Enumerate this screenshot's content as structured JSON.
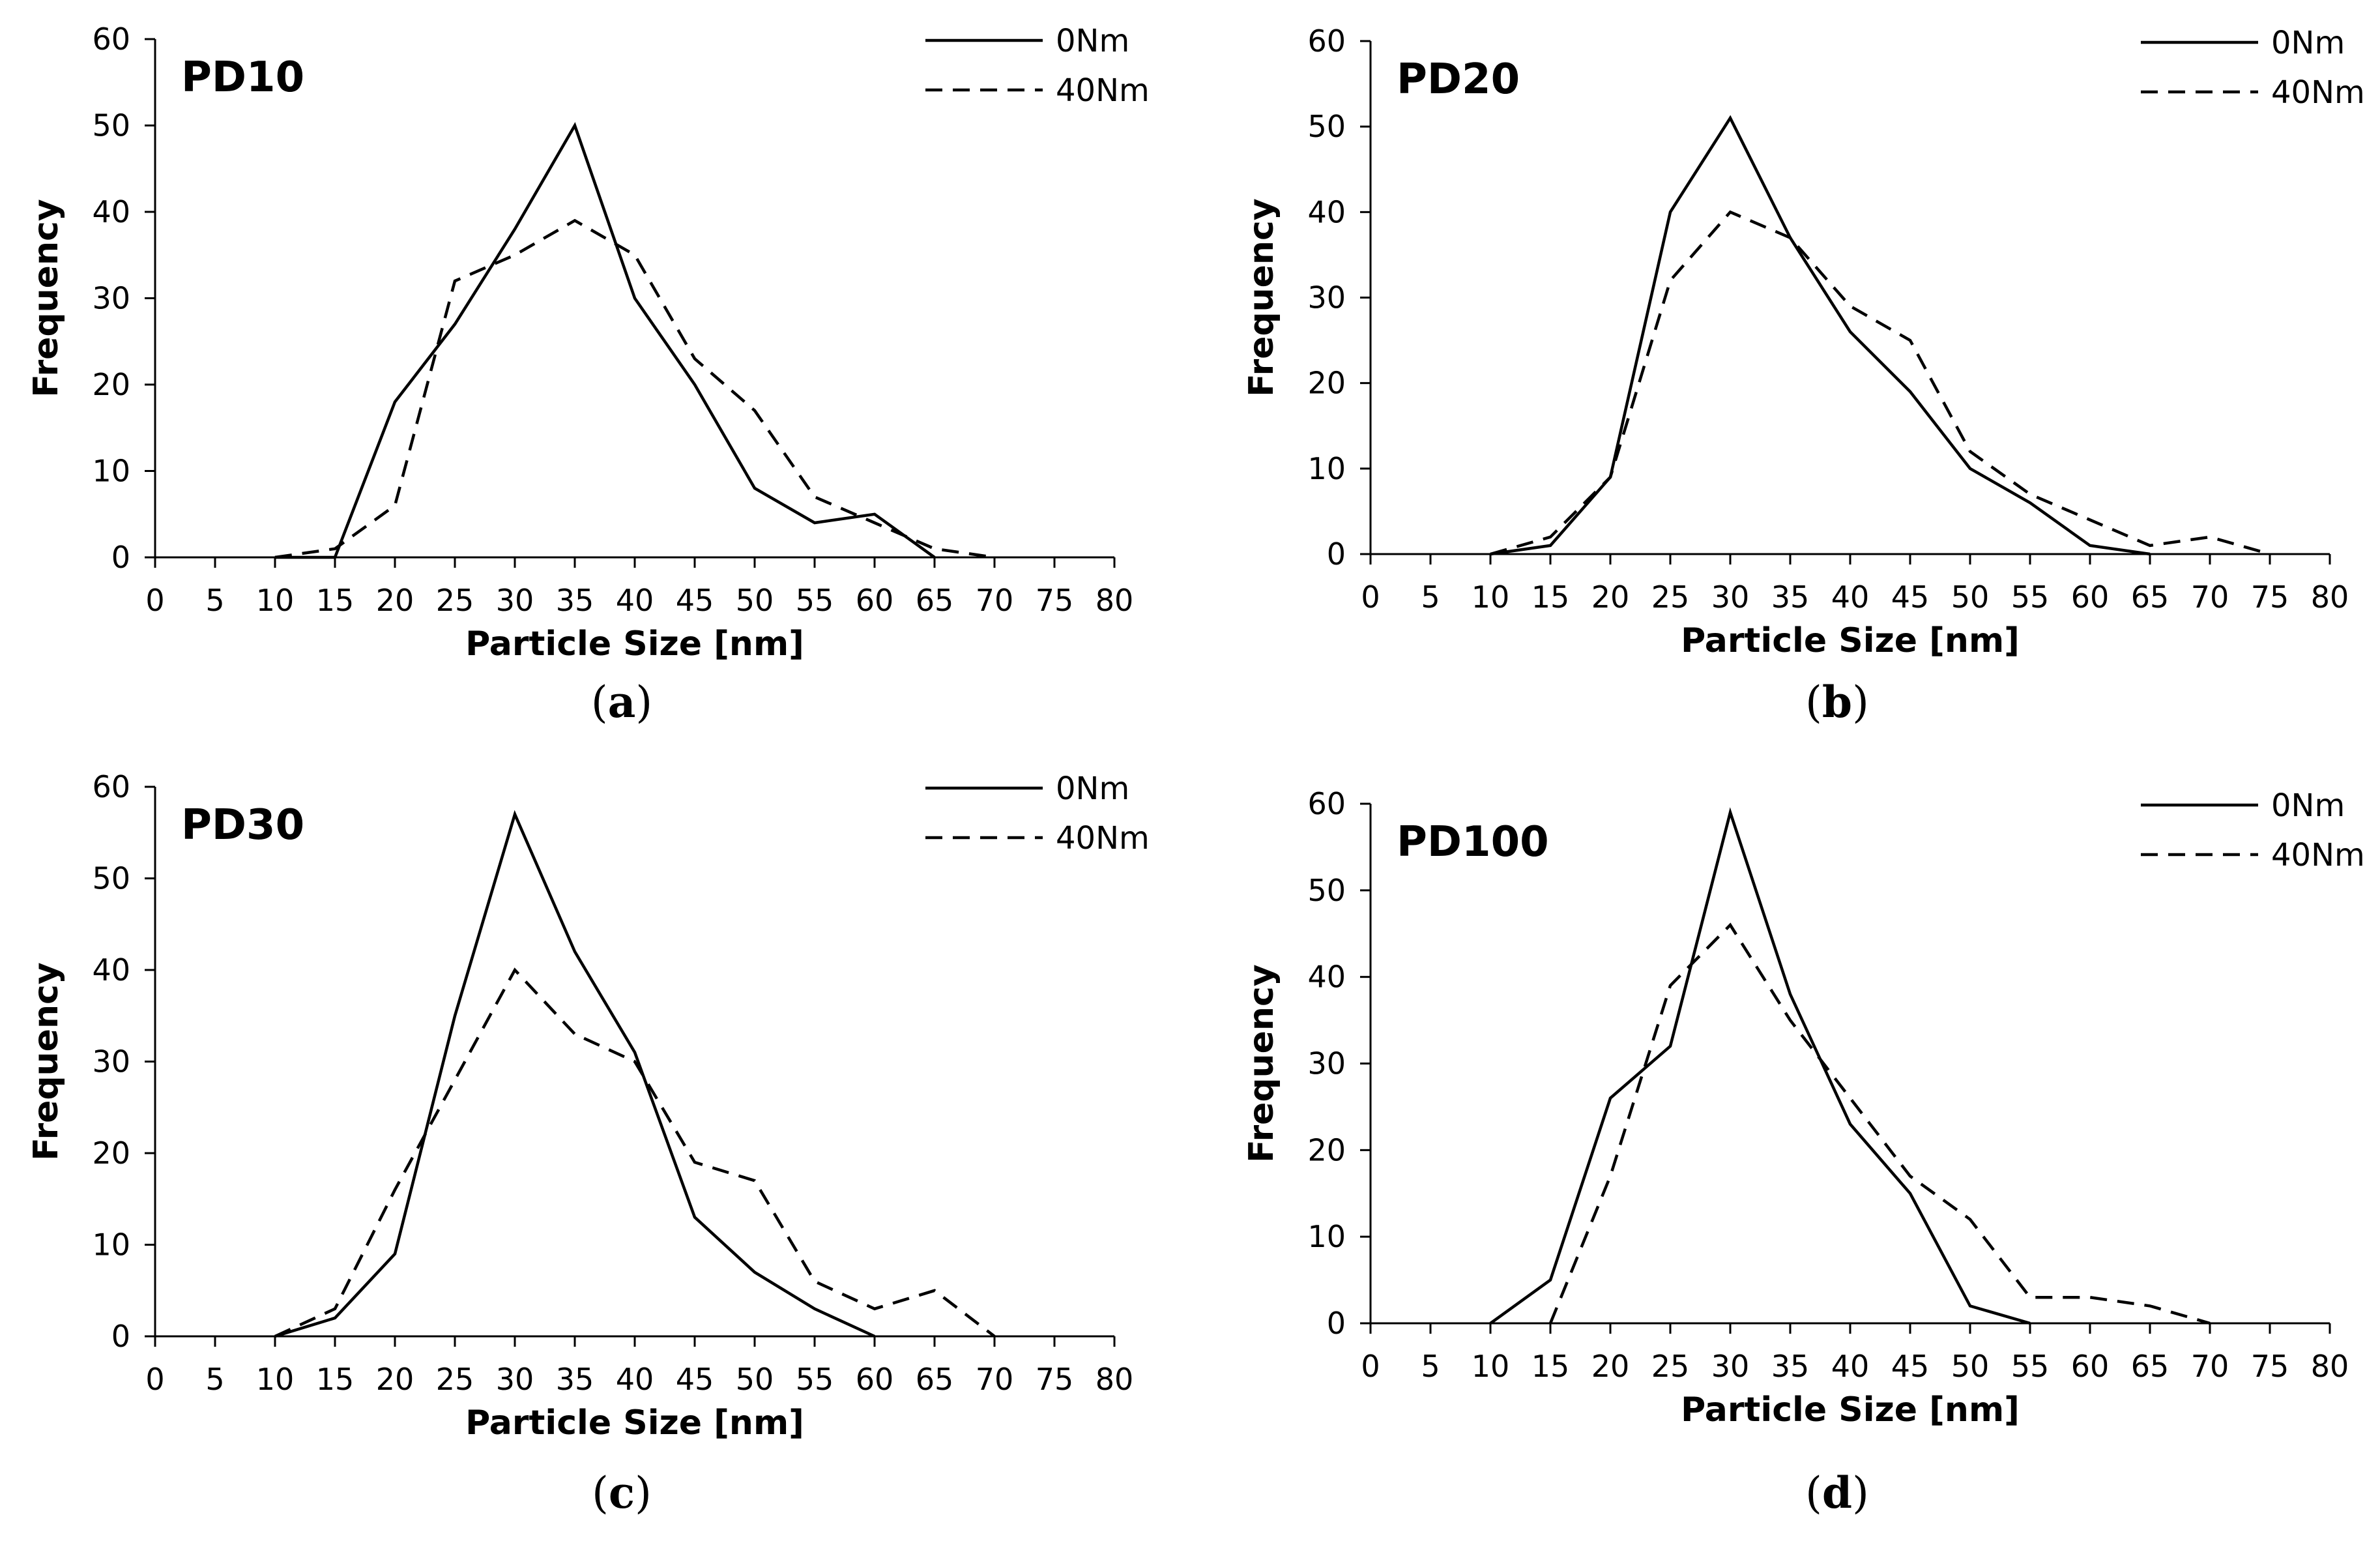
{
  "chart_data": [
    {
      "type": "line",
      "title": "PD10",
      "caption_letter": "a",
      "xlabel": "Particle Size [nm]",
      "ylabel": "Frequency",
      "xlim": [
        0,
        80
      ],
      "ylim": [
        0,
        60
      ],
      "xticks": [
        0,
        5,
        10,
        15,
        20,
        25,
        30,
        35,
        40,
        45,
        50,
        55,
        60,
        65,
        70,
        75,
        80
      ],
      "yticks": [
        0,
        10,
        20,
        30,
        40,
        50,
        60
      ],
      "legend_position": "top-right",
      "series": [
        {
          "name": "0Nm",
          "style": "solid",
          "x": [
            10,
            15,
            20,
            25,
            30,
            35,
            40,
            45,
            50,
            55,
            60,
            65
          ],
          "y": [
            0,
            0,
            18,
            27,
            38,
            50,
            30,
            20,
            8,
            4,
            5,
            0
          ]
        },
        {
          "name": "40Nm",
          "style": "dashed",
          "x": [
            10,
            15,
            20,
            25,
            30,
            35,
            40,
            45,
            50,
            55,
            60,
            65,
            70
          ],
          "y": [
            0,
            1,
            6,
            32,
            35,
            39,
            35,
            23,
            17,
            7,
            4,
            1,
            0
          ]
        }
      ]
    },
    {
      "type": "line",
      "title": "PD20",
      "caption_letter": "b",
      "xlabel": "Particle Size [nm]",
      "ylabel": "Frequency",
      "xlim": [
        0,
        80
      ],
      "ylim": [
        0,
        60
      ],
      "xticks": [
        0,
        5,
        10,
        15,
        20,
        25,
        30,
        35,
        40,
        45,
        50,
        55,
        60,
        65,
        70,
        75,
        80
      ],
      "yticks": [
        0,
        10,
        20,
        30,
        40,
        50,
        60
      ],
      "legend_position": "top-right",
      "series": [
        {
          "name": "0Nm",
          "style": "solid",
          "x": [
            10,
            15,
            20,
            25,
            30,
            35,
            40,
            45,
            50,
            55,
            60,
            65
          ],
          "y": [
            0,
            1,
            9,
            40,
            51,
            37,
            26,
            19,
            10,
            6,
            1,
            0
          ]
        },
        {
          "name": "40Nm",
          "style": "dashed",
          "x": [
            10,
            15,
            20,
            25,
            30,
            35,
            40,
            45,
            50,
            55,
            60,
            65,
            70,
            75
          ],
          "y": [
            0,
            2,
            9,
            32,
            40,
            37,
            29,
            25,
            12,
            7,
            4,
            1,
            2,
            0
          ]
        }
      ]
    },
    {
      "type": "line",
      "title": "PD30",
      "caption_letter": "c",
      "xlabel": "Particle Size [nm]",
      "ylabel": "Frequency",
      "xlim": [
        0,
        80
      ],
      "ylim": [
        0,
        60
      ],
      "xticks": [
        0,
        5,
        10,
        15,
        20,
        25,
        30,
        35,
        40,
        45,
        50,
        55,
        60,
        65,
        70,
        75,
        80
      ],
      "yticks": [
        0,
        10,
        20,
        30,
        40,
        50,
        60
      ],
      "legend_position": "top-right",
      "series": [
        {
          "name": "0Nm",
          "style": "solid",
          "x": [
            10,
            15,
            20,
            25,
            30,
            35,
            40,
            45,
            50,
            55,
            60
          ],
          "y": [
            0,
            2,
            9,
            35,
            57,
            42,
            31,
            13,
            7,
            3,
            0
          ]
        },
        {
          "name": "40Nm",
          "style": "dashed",
          "x": [
            10,
            15,
            20,
            25,
            30,
            35,
            40,
            45,
            50,
            55,
            60,
            65,
            70
          ],
          "y": [
            0,
            3,
            16,
            28,
            40,
            33,
            30,
            19,
            17,
            6,
            3,
            5,
            0
          ]
        }
      ]
    },
    {
      "type": "line",
      "title": "PD100",
      "caption_letter": "d",
      "xlabel": "Particle Size [nm]",
      "ylabel": "Frequency",
      "xlim": [
        0,
        80
      ],
      "ylim": [
        0,
        60
      ],
      "xticks": [
        0,
        5,
        10,
        15,
        20,
        25,
        30,
        35,
        40,
        45,
        50,
        55,
        60,
        65,
        70,
        75,
        80
      ],
      "yticks": [
        0,
        10,
        20,
        30,
        40,
        50,
        60
      ],
      "legend_position": "top-right",
      "series": [
        {
          "name": "0Nm",
          "style": "solid",
          "x": [
            10,
            15,
            20,
            25,
            30,
            35,
            40,
            45,
            50,
            55
          ],
          "y": [
            0,
            5,
            26,
            32,
            59,
            38,
            23,
            15,
            2,
            0
          ]
        },
        {
          "name": "40Nm",
          "style": "dashed",
          "x": [
            15,
            20,
            25,
            30,
            35,
            40,
            45,
            50,
            55,
            60,
            65,
            70
          ],
          "y": [
            0,
            17,
            39,
            46,
            35,
            26,
            17,
            12,
            3,
            3,
            2,
            0
          ]
        }
      ]
    }
  ]
}
